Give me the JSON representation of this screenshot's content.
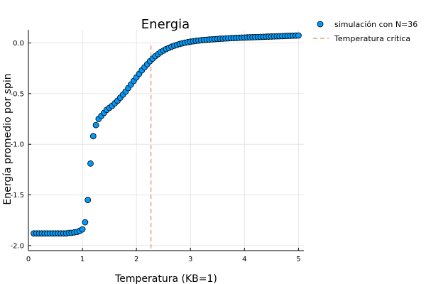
{
  "chart_data": {
    "type": "scatter",
    "title": "Energia",
    "xlabel": "Temperatura (KB=1)",
    "ylabel": "Energía promedio por spin",
    "xlim": [
      0,
      5.1
    ],
    "ylim": [
      -2.05,
      0.13
    ],
    "xticks": [
      0,
      1,
      2,
      3,
      4,
      5
    ],
    "xtick_labels": [
      "0",
      "1",
      "2",
      "3",
      "4",
      "5"
    ],
    "yticks": [
      0.0,
      -0.5,
      -1.0,
      -1.5,
      -2.0
    ],
    "ytick_labels": [
      "0.0",
      "-0.5",
      "-1.0",
      "-1.5",
      "-2.0"
    ],
    "grid": true,
    "legend_position": "outside-top-right",
    "critical_temperature": 2.27,
    "colors": {
      "series": "#009af9",
      "critical": "#e26f46"
    },
    "series": [
      {
        "name": "simulación con N=36",
        "x": [
          0.1,
          0.15,
          0.2,
          0.25,
          0.3,
          0.35,
          0.4,
          0.45,
          0.5,
          0.55,
          0.6,
          0.65,
          0.7,
          0.75,
          0.8,
          0.85,
          0.9,
          0.95,
          1.0,
          1.05,
          1.1,
          1.15,
          1.2,
          1.25,
          1.3,
          1.35,
          1.4,
          1.45,
          1.5,
          1.55,
          1.6,
          1.65,
          1.7,
          1.75,
          1.8,
          1.85,
          1.9,
          1.95,
          2.0,
          2.05,
          2.1,
          2.15,
          2.2,
          2.25,
          2.3,
          2.35,
          2.4,
          2.45,
          2.5,
          2.55,
          2.6,
          2.65,
          2.7,
          2.75,
          2.8,
          2.85,
          2.9,
          2.95,
          3.0,
          3.05,
          3.1,
          3.15,
          3.2,
          3.25,
          3.3,
          3.35,
          3.4,
          3.45,
          3.5,
          3.55,
          3.6,
          3.65,
          3.7,
          3.75,
          3.8,
          3.85,
          3.9,
          3.95,
          4.0,
          4.05,
          4.1,
          4.15,
          4.2,
          4.25,
          4.3,
          4.35,
          4.4,
          4.45,
          4.5,
          4.55,
          4.6,
          4.65,
          4.7,
          4.75,
          4.8,
          4.85,
          4.9,
          4.95,
          5.0
        ],
        "y": [
          -1.88,
          -1.88,
          -1.88,
          -1.88,
          -1.88,
          -1.88,
          -1.88,
          -1.88,
          -1.88,
          -1.88,
          -1.88,
          -1.88,
          -1.88,
          -1.875,
          -1.875,
          -1.87,
          -1.865,
          -1.855,
          -1.84,
          -1.77,
          -1.55,
          -1.19,
          -0.92,
          -0.81,
          -0.75,
          -0.72,
          -0.69,
          -0.66,
          -0.64,
          -0.62,
          -0.595,
          -0.57,
          -0.54,
          -0.51,
          -0.48,
          -0.445,
          -0.41,
          -0.375,
          -0.34,
          -0.305,
          -0.27,
          -0.24,
          -0.21,
          -0.18,
          -0.155,
          -0.13,
          -0.11,
          -0.09,
          -0.075,
          -0.06,
          -0.048,
          -0.037,
          -0.027,
          -0.018,
          -0.01,
          -0.003,
          0.003,
          0.008,
          0.013,
          0.017,
          0.021,
          0.024,
          0.027,
          0.03,
          0.032,
          0.034,
          0.036,
          0.038,
          0.04,
          0.042,
          0.043,
          0.045,
          0.046,
          0.048,
          0.049,
          0.05,
          0.052,
          0.053,
          0.054,
          0.055,
          0.056,
          0.057,
          0.058,
          0.059,
          0.06,
          0.061,
          0.062,
          0.063,
          0.064,
          0.065,
          0.066,
          0.067,
          0.068,
          0.069,
          0.07,
          0.071,
          0.072,
          0.073,
          0.074
        ]
      },
      {
        "name": "Temperatura crítica"
      }
    ]
  }
}
